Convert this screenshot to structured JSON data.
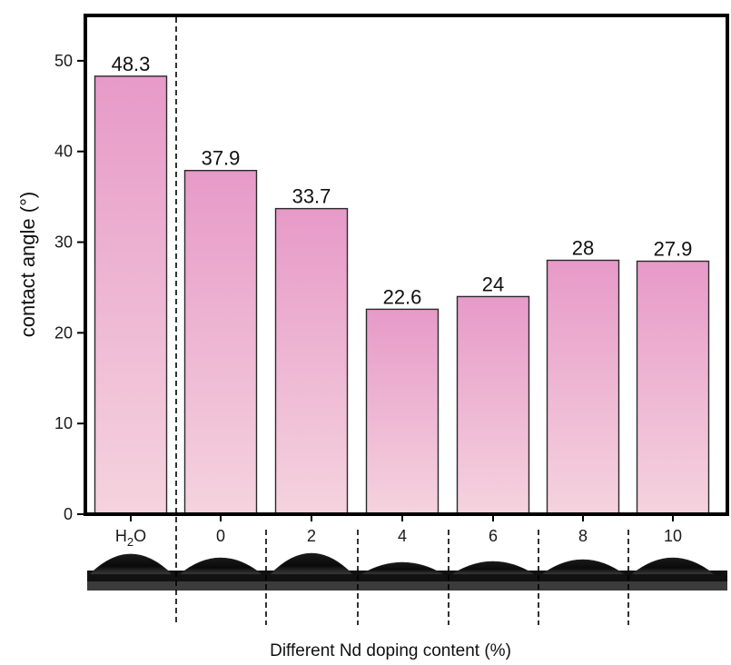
{
  "chart_data": {
    "type": "bar",
    "categories": [
      "H2O",
      "0",
      "2",
      "4",
      "6",
      "8",
      "10"
    ],
    "values": [
      48.3,
      37.9,
      33.7,
      22.6,
      24,
      28,
      27.9
    ],
    "value_labels": [
      "48.3",
      "37.9",
      "33.7",
      "22.6",
      "24",
      "28",
      "27.9"
    ],
    "title": "",
    "xlabel": "Different Nd doping content (%)",
    "ylabel": "contact angle (°)",
    "ylim": [
      0,
      55
    ],
    "yticks": [
      0,
      10,
      20,
      30,
      40,
      50
    ],
    "grid": false,
    "separator_after_category": "H2O",
    "droplet_images_below_axis": true
  },
  "colors": {
    "bar_top": "#e79ac8",
    "bar_bottom": "#f5d3de",
    "bar_edge": "#2a2a2a",
    "axis": "#000000"
  },
  "labels": {
    "h2o_main": "H",
    "h2o_sub": "2",
    "h2o_end": "O"
  }
}
